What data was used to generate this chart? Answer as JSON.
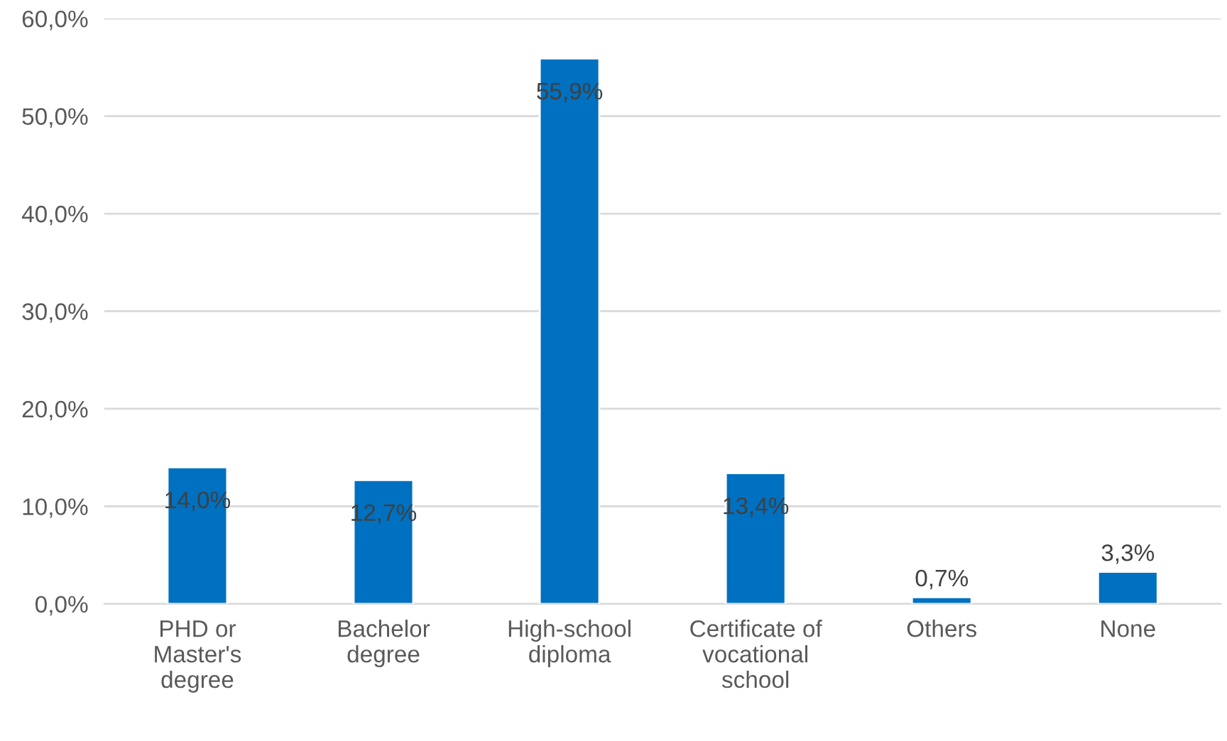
{
  "chart_data": {
    "type": "bar",
    "categories": [
      "PHD or Master's degree",
      "Bachelor degree",
      "High-school diploma",
      "Certificate of vocational school",
      "Others",
      "None"
    ],
    "values": [
      14.0,
      12.7,
      55.9,
      13.4,
      0.7,
      3.3
    ],
    "value_labels": [
      "14,0%",
      "12,7%",
      "55,9%",
      "13,4%",
      "0,7%",
      "3,3%"
    ],
    "color": "#0070c0",
    "ylim": [
      0,
      60
    ],
    "yticks": [
      {
        "value": 0,
        "label": "0,0%"
      },
      {
        "value": 10,
        "label": "10,0%"
      },
      {
        "value": 20,
        "label": "20,0%"
      },
      {
        "value": 30,
        "label": "30,0%"
      },
      {
        "value": 40,
        "label": "40,0%"
      },
      {
        "value": 50,
        "label": "50,0%"
      },
      {
        "value": 60,
        "label": "60,0%"
      }
    ],
    "grid": "y",
    "legend": false
  }
}
